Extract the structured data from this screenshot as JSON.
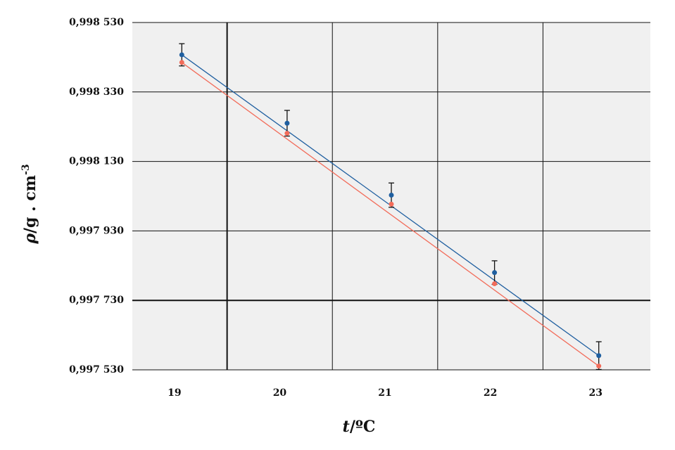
{
  "chart_data": {
    "type": "scatter",
    "title": "",
    "xlabel_var": "t",
    "xlabel_unit": "/ºC",
    "ylabel_var": "ρ",
    "ylabel_unit": "/g . cm",
    "ylabel_exp": "-3",
    "xlim": [
      18.6,
      23.52
    ],
    "ylim": [
      0.99753,
      0.99853
    ],
    "x_ticks": [
      19,
      20,
      21,
      22,
      23
    ],
    "x_tick_labels": [
      "19",
      "20",
      "21",
      "22",
      "23"
    ],
    "y_ticks": [
      0.99753,
      0.99773,
      0.99793,
      0.99813,
      0.99833,
      0.99853
    ],
    "y_tick_labels": [
      "0,997 530",
      "0,997 730",
      "0,997 930",
      "0,998 130",
      "0,998 330",
      "0,998 530"
    ],
    "grid": true,
    "background": "#f0f0f0",
    "series": [
      {
        "color": "#1f5fa0",
        "x": [
          19.07,
          20.07,
          21.06,
          22.04,
          23.03
        ],
        "y": [
          0.998437,
          0.99824,
          0.998033,
          0.99781,
          0.997571
        ],
        "err": [
          3.2e-05,
          3.7e-05,
          3.5e-05,
          3.4e-05,
          4e-05
        ],
        "fit": [
          [
            19.07,
            0.998437
          ],
          [
            23.03,
            0.997571
          ]
        ]
      },
      {
        "color": "#f26c5a",
        "x": [
          19.07,
          20.07,
          21.06,
          22.04,
          23.03
        ],
        "y": [
          0.998415,
          0.998211,
          0.998007,
          0.997778,
          0.997541
        ],
        "fit": [
          [
            19.07,
            0.998415
          ],
          [
            23.03,
            0.997541
          ]
        ]
      }
    ]
  }
}
